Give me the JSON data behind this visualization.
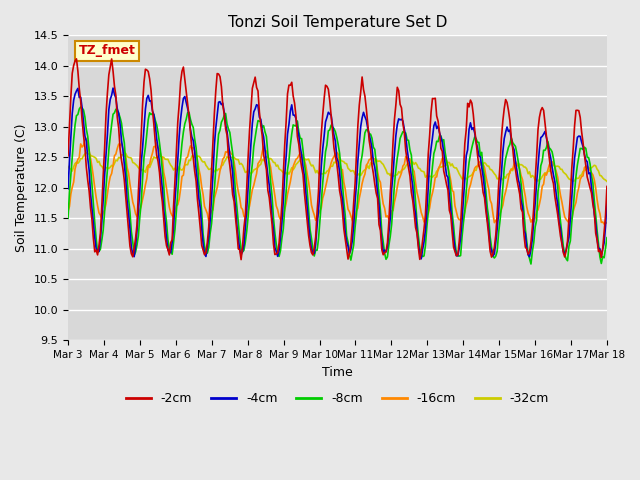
{
  "title": "Tonzi Soil Temperature Set D",
  "xlabel": "Time",
  "ylabel": "Soil Temperature (C)",
  "ylim": [
    9.5,
    14.5
  ],
  "series_colors": {
    "-2cm": "#cc0000",
    "-4cm": "#0000cc",
    "-8cm": "#00cc00",
    "-16cm": "#ff8800",
    "-32cm": "#cccc00"
  },
  "legend_label": "TZ_fmet",
  "legend_box_color": "#ffffcc",
  "legend_box_edge": "#cc8800",
  "background_color": "#e8e8e8",
  "plot_bg_color": "#d8d8d8",
  "grid_color": "#ffffff",
  "x_tick_labels": [
    "Mar 3",
    "Mar 4",
    "Mar 5",
    "Mar 6",
    "Mar 7",
    "Mar 8",
    "Mar 9",
    "Mar 10",
    "Mar 11",
    "Mar 12",
    "Mar 13",
    "Mar 14",
    "Mar 15",
    "Mar 16",
    "Mar 17",
    "Mar 18"
  ],
  "n_points": 384,
  "days": 15
}
